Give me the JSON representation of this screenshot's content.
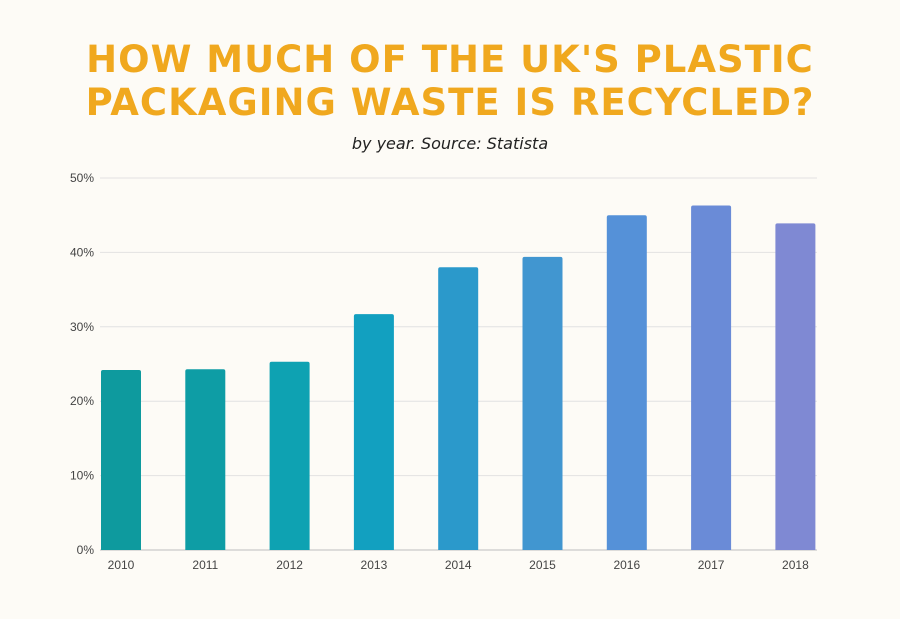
{
  "chart_data": {
    "type": "bar",
    "title": "HOW MUCH OF THE UK'S PLASTIC PACKAGING WASTE IS RECYCLED?",
    "subtitle": "by year. Source: Statista",
    "categories": [
      "2010",
      "2011",
      "2012",
      "2013",
      "2014",
      "2015",
      "2016",
      "2017",
      "2018"
    ],
    "values": [
      24.2,
      24.3,
      25.3,
      31.7,
      38.0,
      39.4,
      45.0,
      46.3,
      43.9
    ],
    "ylim": [
      0,
      50
    ],
    "yticks": [
      0,
      10,
      20,
      30,
      40,
      50
    ],
    "ytick_labels": [
      "0%",
      "10%",
      "20%",
      "30%",
      "40%",
      "50%"
    ],
    "xlabel": "",
    "ylabel": "",
    "grid": true,
    "legend": "none",
    "bar_colors": [
      "#0e9a9e",
      "#0e9da5",
      "#0ea2b2",
      "#12a0c0",
      "#2b99cb",
      "#4196d0",
      "#5591d8",
      "#6a8bd7",
      "#7f89d3"
    ],
    "title_color": "#f0a81e"
  }
}
